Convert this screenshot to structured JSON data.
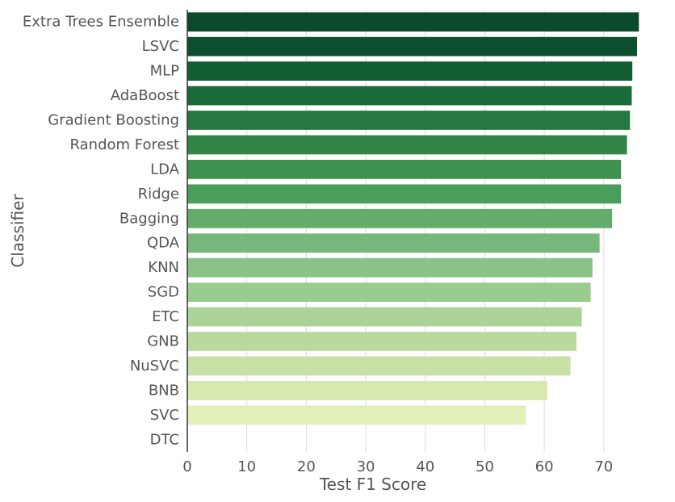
{
  "chart_data": {
    "type": "bar",
    "orientation": "horizontal",
    "xlabel": "Test F1 Score",
    "ylabel": "Classifier",
    "xlim": [
      0,
      76
    ],
    "xticks": [
      0,
      10,
      20,
      30,
      40,
      50,
      60,
      70
    ],
    "grid": "vertical",
    "categories": [
      "Extra Trees Ensemble",
      "LSVC",
      "MLP",
      "AdaBoost",
      "Gradient Boosting",
      "Random Forest",
      "LDA",
      "Ridge",
      "Bagging",
      "QDA",
      "KNN",
      "SGD",
      "ETC",
      "GNB",
      "NuSVC",
      "BNB",
      "SVC",
      "DTC"
    ],
    "values": [
      75.9,
      75.6,
      74.8,
      74.7,
      74.4,
      73.9,
      72.9,
      72.9,
      71.4,
      69.3,
      68.1,
      67.8,
      66.3,
      65.4,
      64.4,
      60.5,
      56.9,
      0
    ],
    "colors": [
      "#0b4a2b",
      "#0c4f2e",
      "#125f33",
      "#1a6b3a",
      "#257840",
      "#318546",
      "#3e914f",
      "#4a9d5b",
      "#62ac6c",
      "#77b77b",
      "#8ac287",
      "#9acc8e",
      "#abd397",
      "#b9da9d",
      "#c8e1a5",
      "#d7e9af",
      "#e1efb8",
      "#e9f4c0"
    ]
  }
}
